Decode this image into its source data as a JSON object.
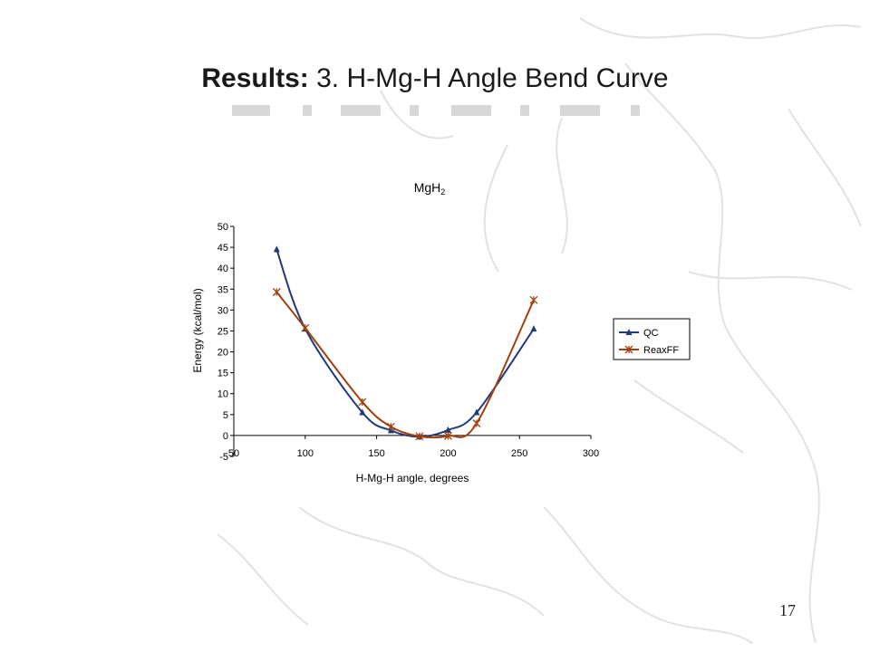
{
  "slide": {
    "title_bold": "Results:",
    "title_rest": "3.  H-Mg-H Angle Bend Curve",
    "page_number": "17"
  },
  "colors": {
    "qc": "#1f3b7a",
    "reaxff": "#a0400e",
    "background_map": "#e3e3e3",
    "dash_bar": "#d8d8d8"
  },
  "chart_data": {
    "type": "line",
    "title": "MgH",
    "title_subscript": "2",
    "xlabel": "H-Mg-H angle, degrees",
    "ylabel": "Energy (kcal/mol)",
    "xlim": [
      50,
      300
    ],
    "ylim": [
      -5,
      50
    ],
    "xticks": [
      50,
      100,
      150,
      200,
      250,
      300
    ],
    "yticks": [
      -5,
      0,
      5,
      10,
      15,
      20,
      25,
      30,
      35,
      40,
      45,
      50
    ],
    "grid": false,
    "legend_position": "right",
    "series": [
      {
        "name": "QC",
        "marker": "triangle",
        "color": "#1f3b7a",
        "x": [
          80,
          100,
          140,
          160,
          180,
          200,
          220,
          260
        ],
        "y": [
          44.5,
          25.5,
          5.5,
          1.2,
          -0.3,
          1.3,
          5.5,
          25.5
        ]
      },
      {
        "name": "ReaxFF",
        "marker": "asterisk",
        "color": "#a0400e",
        "x": [
          80,
          100,
          140,
          160,
          180,
          200,
          220,
          260
        ],
        "y": [
          34.3,
          25.7,
          8.0,
          2.1,
          -0.2,
          -0.1,
          2.9,
          32.4
        ]
      }
    ]
  }
}
